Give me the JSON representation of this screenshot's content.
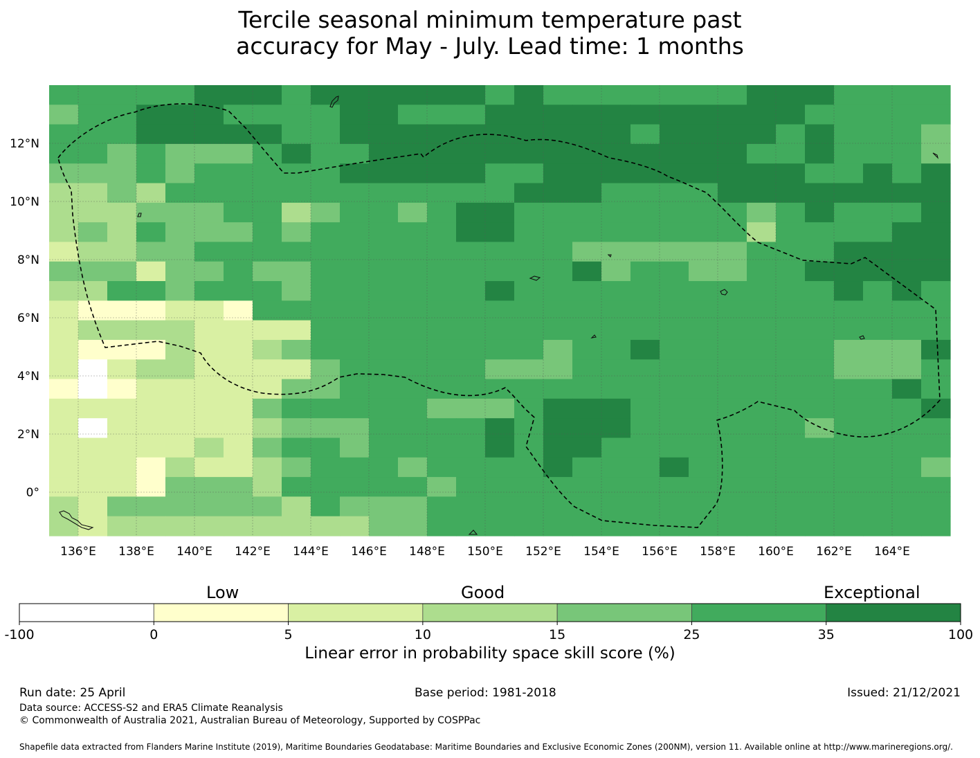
{
  "title_line1": "Tercile seasonal minimum temperature past",
  "title_line2": "accuracy for May - July. Lead time: 1 months",
  "map": {
    "lon_range": [
      135,
      166
    ],
    "lat_range": [
      -1.5,
      14
    ],
    "lon_ticks": [
      "136°E",
      "138°E",
      "140°E",
      "142°E",
      "144°E",
      "146°E",
      "148°E",
      "150°E",
      "152°E",
      "154°E",
      "156°E",
      "158°E",
      "160°E",
      "162°E",
      "164°E"
    ],
    "lat_ticks": [
      "12°N",
      "10°N",
      "8°N",
      "6°N",
      "4°N",
      "2°N",
      "0°"
    ],
    "grid": true,
    "cell_rows": [
      "5555566656666665655555556665555",
      "4556665555665556666666666655555",
      "5556666655666666666656666565554",
      "5545444565566666666666665565554",
      "4445455555666665566666666655656",
      "3343555555555555666555566666666",
      "3334445534554566555555554565556",
      "3435444545555566555555553555566",
      "2334455555555555554444445556666",
      "4442445445555555556455445566666",
      "3355455545555556555555555556565",
      "2111221555555555555555555555555",
      "2333322225555555555555555555555",
      "2111322345555555545565555554446",
      "2023322224555554445555555554445",
      "1012222244555555555555555555565",
      "2222222455555444566655555555556",
      "2022222344455556566655555545555",
      "2222232455455556566555555555555",
      "2221322345554555565556555555554",
      "2221444355555455555555555555555",
      "3244444435444555555555555555555",
      "3233333333344555555555555555555"
    ]
  },
  "colorbar": {
    "categories": [
      "Low",
      "Good",
      "Exceptional"
    ],
    "ticks": [
      "-100",
      "0",
      "5",
      "10",
      "15",
      "25",
      "35",
      "100"
    ],
    "colors": [
      "#ffffff",
      "#ffffcc",
      "#d9f0a3",
      "#addd8e",
      "#78c679",
      "#41ab5d",
      "#238443"
    ],
    "xlabel": "Linear error in probability space skill score (%)"
  },
  "footer": {
    "run_date": "Run date: 25 April",
    "base_period": "Base period: 1981-2018",
    "issued": "Issued: 21/12/2021",
    "data_source": "Data source: ACCESS-S2 and ERA5 Climate Reanalysis",
    "copyright": "© Commonwealth of Australia 2021, Australian Bureau of Meteorology, Supported by COSPPac",
    "shapefile": "Shapefile data extracted from Flanders Marine Institute (2019), Maritime Boundaries Geodatabase: Maritime Boundaries and Exclusive Economic Zones (200NM), version 11. Available online at http://www.marineregions.org/."
  }
}
